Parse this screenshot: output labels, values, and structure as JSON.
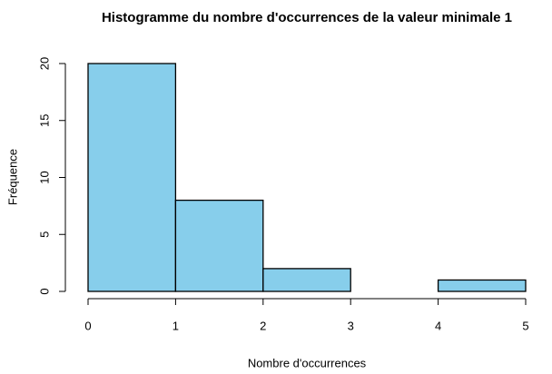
{
  "chart_data": {
    "type": "histogram",
    "title": "Histogramme du nombre d'occurrences de la valeur minimale 1",
    "x_label": "Nombre d'occurrences",
    "y_label": "Fréquence",
    "bins": [
      0,
      1,
      2,
      3,
      4,
      5
    ],
    "values": [
      20,
      8,
      2,
      0,
      1
    ],
    "color": "#87ceeb",
    "xlim": [
      0,
      5
    ],
    "xticks": [
      0,
      1,
      2,
      3,
      4,
      5
    ],
    "ylim": [
      0,
      20
    ],
    "yticks": [
      0,
      5,
      10,
      15,
      20
    ]
  }
}
